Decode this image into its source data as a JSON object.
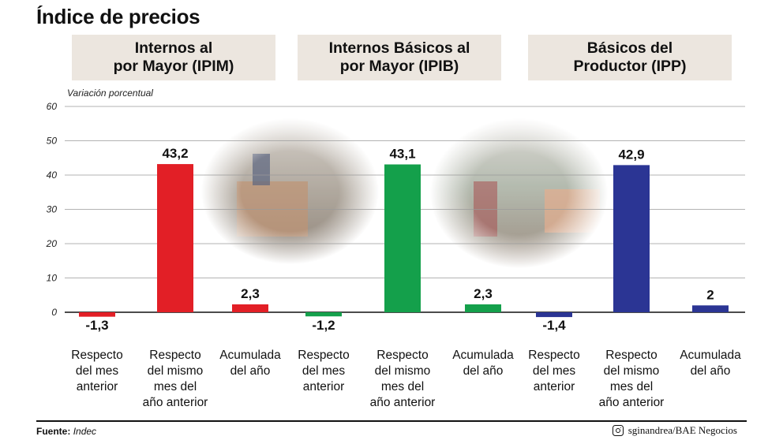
{
  "title": "Índice de precios",
  "panels": [
    {
      "line1": "Internos al",
      "line2": "por Mayor (IPIM)",
      "color": "#e21f26"
    },
    {
      "line1": "Internos Básicos al",
      "line2": "por Mayor (IPIB)",
      "color": "#14a04b"
    },
    {
      "line1": "Básicos del",
      "line2": "Productor (IPP)",
      "color": "#2b3594"
    }
  ],
  "chart_data": {
    "type": "bar",
    "ylabel": "Variación porcentual",
    "ylim": [
      0,
      60
    ],
    "yticks": [
      0,
      10,
      20,
      30,
      40,
      50,
      60
    ],
    "grid": true,
    "categories": [
      [
        "Respecto",
        "del mes",
        "anterior"
      ],
      [
        "Respecto",
        "del mismo",
        "mes del",
        "año anterior"
      ],
      [
        "Acumulada",
        "del año"
      ]
    ],
    "series": [
      {
        "name": "Internos al por Mayor (IPIM)",
        "values": [
          -1.3,
          43.2,
          2.3
        ],
        "labels": [
          "-1,3",
          "43,2",
          "2,3"
        ],
        "color": "#e21f26"
      },
      {
        "name": "Internos Básicos al por Mayor (IPIB)",
        "values": [
          -1.2,
          43.1,
          2.3
        ],
        "labels": [
          "-1,2",
          "43,1",
          "2,3"
        ],
        "color": "#14a04b"
      },
      {
        "name": "Básicos del Productor (IPP)",
        "values": [
          -1.4,
          42.9,
          2
        ],
        "labels": [
          "-1,4",
          "42,9",
          "2"
        ],
        "color": "#2b3594"
      }
    ]
  },
  "footer": {
    "source_label": "Fuente:",
    "source_value": "Indec",
    "credit_icon": "instagram-icon",
    "credit": "sginandrea/BAE Negocios"
  }
}
